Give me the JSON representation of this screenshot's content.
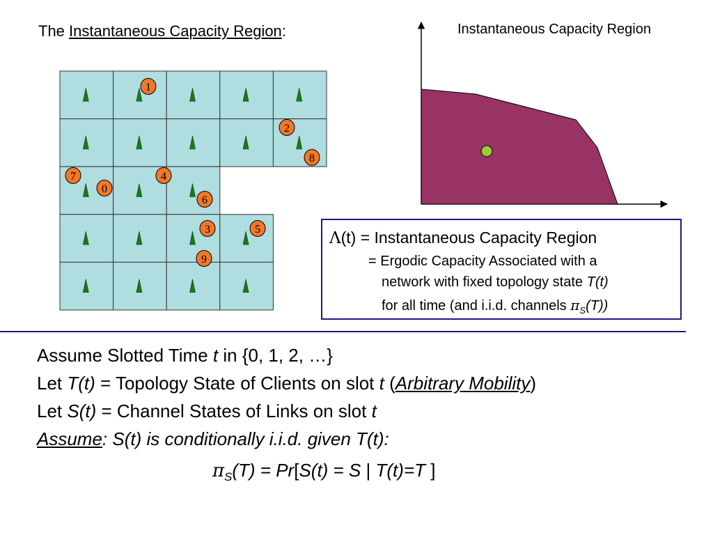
{
  "title": {
    "prefix": "The ",
    "underlined": "Instantaneous Capacity Region",
    "suffix": ":"
  },
  "capacity_plot": {
    "label": "Instantaneous Capacity Region",
    "region_color": "#993366",
    "point_color": "#99cc33"
  },
  "grid": {
    "cell_color": "#b0dde0",
    "tower_color": "#1a7a1a",
    "client_color": "#f07828",
    "nodes": [
      "0",
      "1",
      "2",
      "3",
      "4",
      "5",
      "6",
      "7",
      "8",
      "9"
    ]
  },
  "infobox": {
    "line1_symbol": "Λ",
    "line1_rest": "(t) = Instantaneous Capacity Region",
    "line2": "= Ergodic Capacity Associated with a",
    "line3_prefix": "network with fixed topology state ",
    "line3_italic": "T(t)",
    "line4_prefix": "for all time (and i.i.d. channels ",
    "line4_pi": "π",
    "line4_sub": "S",
    "line4_italic": "(T))"
  },
  "body": {
    "b1_prefix": "Assume Slotted Time ",
    "b1_t": "t",
    "b1_suffix": " in {0, 1, 2, …}",
    "b2_prefix": "Let ",
    "b2_t": "T(t)",
    "b2_mid": " = Topology State of Clients on slot ",
    "b2_t2": "t",
    "b2_paren_open": "  (",
    "b2_mobility": "Arbitrary Mobility",
    "b2_paren_close": ")",
    "b3_prefix": "Let ",
    "b3_s": "S(t)",
    "b3_mid": " = Channel States of Links on slot ",
    "b3_t": "t",
    "b4_assume": "Assume",
    "b4_rest": ": S(t) is conditionally i.i.d. given T(t):",
    "b5_pi": "π",
    "b5_sub": "S",
    "b5_a": "(T) = ",
    "b5_pr": "Pr",
    "b5_b": "[",
    "b5_c": "S(t) = S",
    "b5_d": " | ",
    "b5_e": "T(t)=T",
    "b5_f": " ]"
  }
}
